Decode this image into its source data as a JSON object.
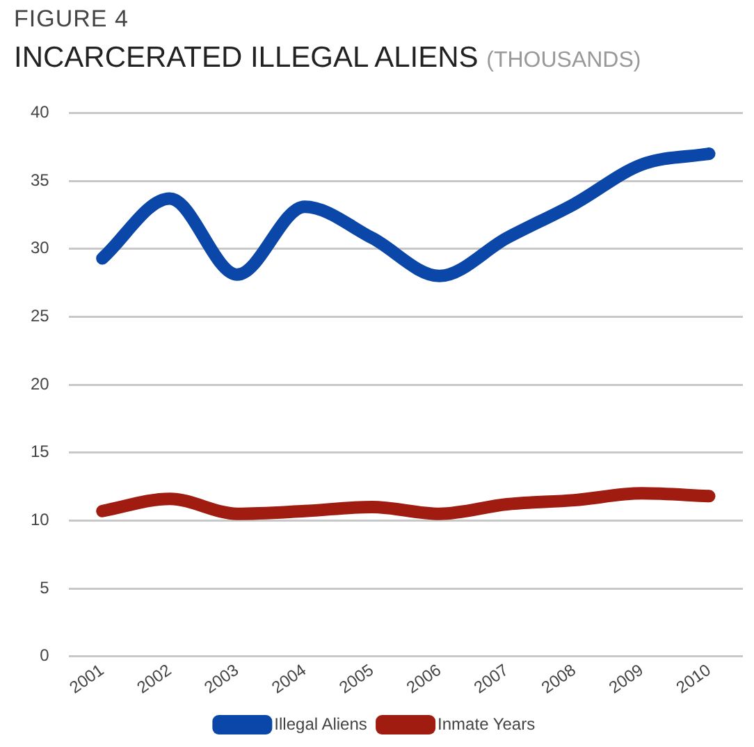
{
  "chart_data": {
    "type": "line",
    "title": "INCARCERATED ILLEGAL ALIENS",
    "subtitle": "(THOUSANDS)",
    "annotations": [
      "FIGURE 4"
    ],
    "categories": [
      "2001",
      "2002",
      "2003",
      "2004",
      "2005",
      "2006",
      "2007",
      "2008",
      "2009",
      "2010"
    ],
    "series": [
      {
        "name": "Illegal Aliens",
        "color": "#0b47a8",
        "values": [
          29.3,
          33.7,
          28.1,
          33.1,
          30.8,
          28.0,
          30.8,
          33.3,
          36.2,
          37.0
        ]
      },
      {
        "name": "Inmate Years",
        "color": "#a01c10",
        "values": [
          10.7,
          11.6,
          10.5,
          10.7,
          11.0,
          10.5,
          11.2,
          11.5,
          12.0,
          11.8
        ]
      }
    ],
    "ylim": [
      0,
      40
    ],
    "yticks": [
      0,
      5,
      10,
      15,
      20,
      25,
      30,
      35,
      40
    ],
    "grid": "y",
    "legend": "bottom",
    "marker": "none",
    "line_style": "solid"
  }
}
